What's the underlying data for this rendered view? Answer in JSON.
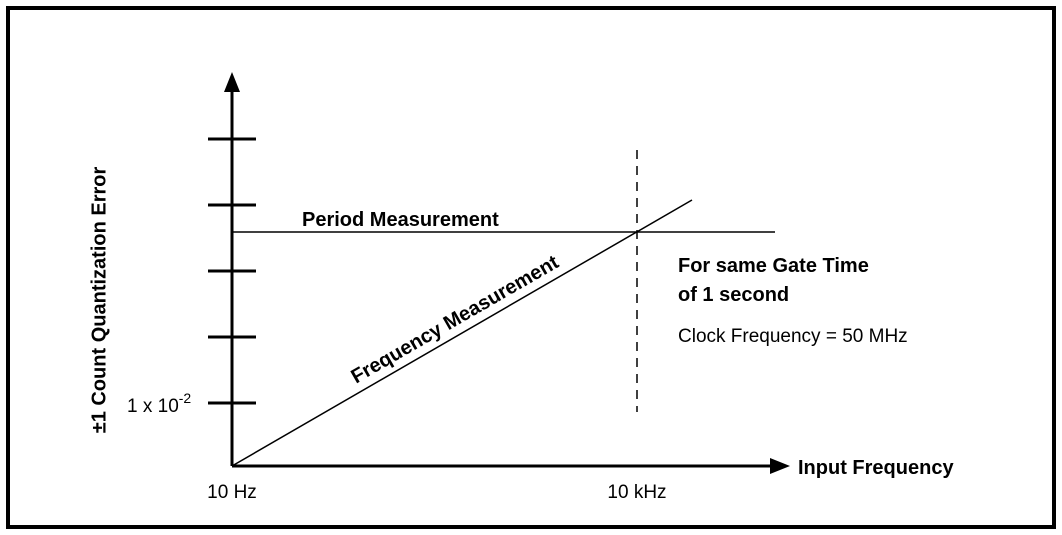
{
  "diagram": {
    "y_axis_label": "±1 Count Quantization Error",
    "x_axis_label": "Input Frequency",
    "y_tick_label": {
      "base": "1 x 10",
      "exponent": "-2"
    },
    "x_tick_labels": [
      "10 Hz",
      "10 kHz"
    ],
    "curves": [
      "Period Measurement",
      "Frequency Measurement"
    ],
    "note": [
      "For same Gate Time",
      "of 1 second"
    ],
    "clock_note": "Clock Frequency = 50 MHz"
  }
}
